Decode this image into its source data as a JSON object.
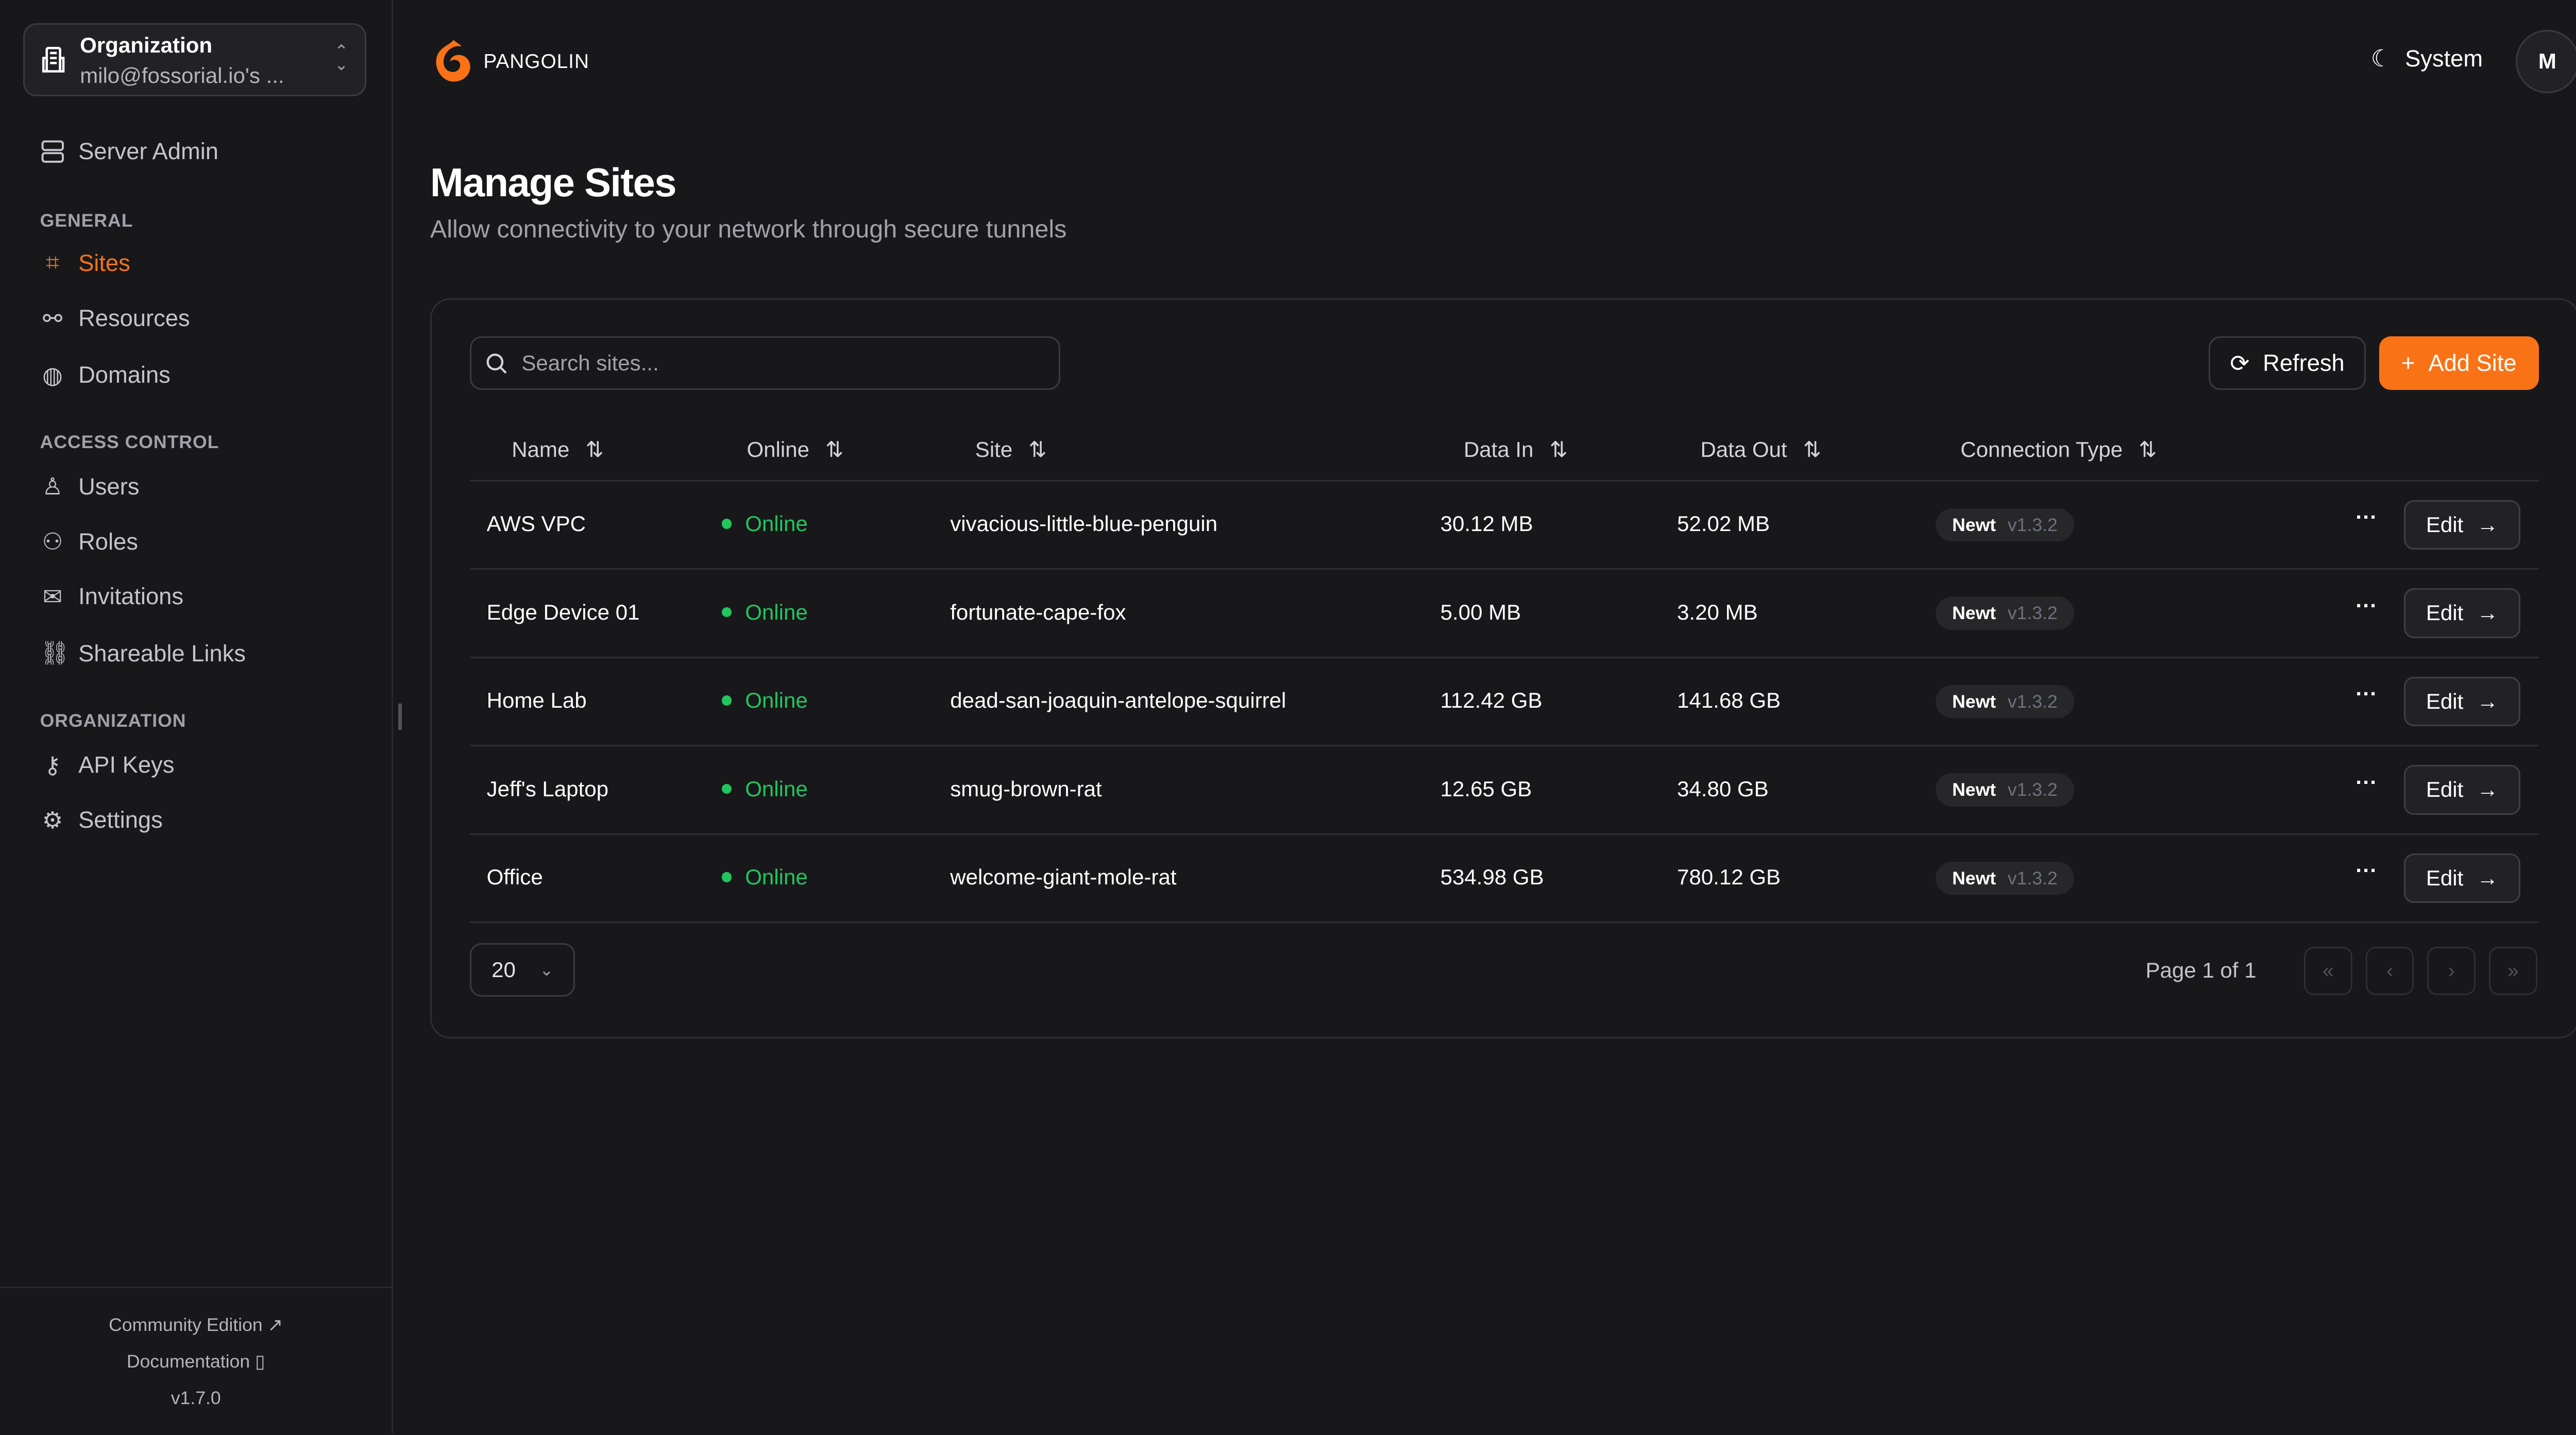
{
  "org": {
    "label": "Organization",
    "value": "milo@fossorial.io's ..."
  },
  "sidebar": {
    "server_admin": "Server Admin",
    "sections": [
      {
        "title": "GENERAL",
        "items": [
          {
            "label": "Sites",
            "icon": "sites-icon",
            "active": true
          },
          {
            "label": "Resources",
            "icon": "resources-icon"
          },
          {
            "label": "Domains",
            "icon": "globe-icon"
          }
        ]
      },
      {
        "title": "ACCESS CONTROL",
        "items": [
          {
            "label": "Users",
            "icon": "user-icon"
          },
          {
            "label": "Roles",
            "icon": "users-icon"
          },
          {
            "label": "Invitations",
            "icon": "mail-icon"
          },
          {
            "label": "Shareable Links",
            "icon": "link-icon"
          }
        ]
      },
      {
        "title": "ORGANIZATION",
        "items": [
          {
            "label": "API Keys",
            "icon": "key-icon"
          },
          {
            "label": "Settings",
            "icon": "gear-icon"
          }
        ]
      }
    ],
    "footer": {
      "community": "Community Edition",
      "docs": "Documentation",
      "version": "v1.7.0"
    }
  },
  "header": {
    "brand": "PANGOLIN",
    "theme": "System",
    "avatar": "M"
  },
  "page": {
    "title": "Manage Sites",
    "subtitle": "Allow connectivity to your network through secure tunnels"
  },
  "toolbar": {
    "search_placeholder": "Search sites...",
    "refresh": "Refresh",
    "add": "Add Site"
  },
  "table": {
    "columns": [
      "Name",
      "Online",
      "Site",
      "Data In",
      "Data Out",
      "Connection Type"
    ],
    "rows": [
      {
        "name": "AWS VPC",
        "status": "Online",
        "site": "vivacious-little-blue-penguin",
        "data_in": "30.12 MB",
        "data_out": "52.02 MB",
        "conn": "Newt",
        "ver": "v1.3.2"
      },
      {
        "name": "Edge Device 01",
        "status": "Online",
        "site": "fortunate-cape-fox",
        "data_in": "5.00 MB",
        "data_out": "3.20 MB",
        "conn": "Newt",
        "ver": "v1.3.2"
      },
      {
        "name": "Home Lab",
        "status": "Online",
        "site": "dead-san-joaquin-antelope-squirrel",
        "data_in": "112.42 GB",
        "data_out": "141.68 GB",
        "conn": "Newt",
        "ver": "v1.3.2"
      },
      {
        "name": "Jeff's Laptop",
        "status": "Online",
        "site": "smug-brown-rat",
        "data_in": "12.65 GB",
        "data_out": "34.80 GB",
        "conn": "Newt",
        "ver": "v1.3.2"
      },
      {
        "name": "Office",
        "status": "Online",
        "site": "welcome-giant-mole-rat",
        "data_in": "534.98 GB",
        "data_out": "780.12 GB",
        "conn": "Newt",
        "ver": "v1.3.2"
      }
    ],
    "edit_label": "Edit"
  },
  "pagination": {
    "page_size": "20",
    "page_text": "Page 1 of 1"
  },
  "colors": {
    "accent": "#f97316",
    "online": "#22c55e",
    "background": "#18181b"
  }
}
